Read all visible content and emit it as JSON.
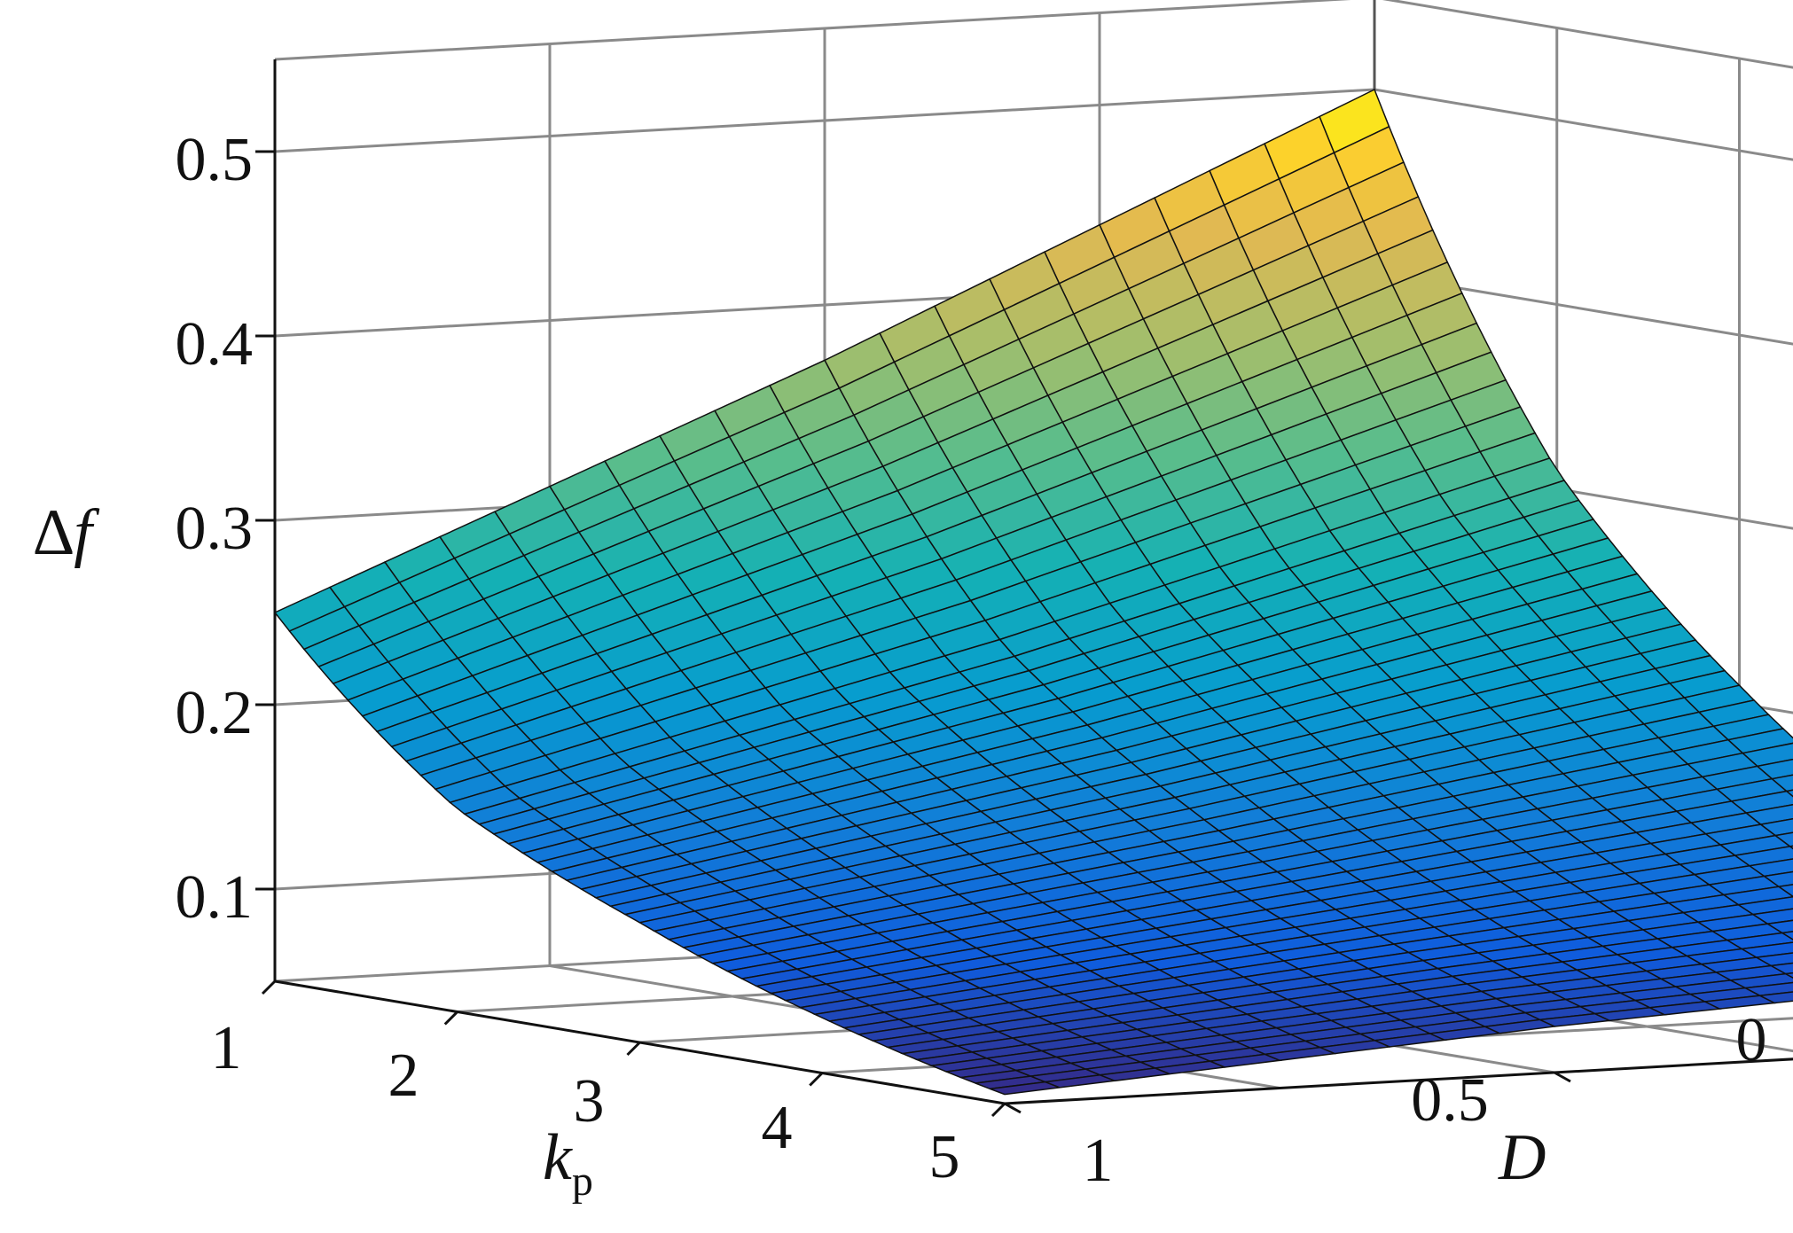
{
  "chart_data": {
    "type": "surface",
    "title": "",
    "x_axis": {
      "symbol": "k",
      "subscript": "p",
      "ticks": [
        "1",
        "2",
        "3",
        "4",
        "5"
      ],
      "range": [
        1,
        5
      ]
    },
    "y_axis": {
      "symbol": "D",
      "ticks": [
        "1",
        "0.5",
        "0"
      ],
      "range": [
        0,
        1
      ]
    },
    "z_axis": {
      "symbol": "∆f",
      "ticks": [
        "0.1",
        "0.2",
        "0.3",
        "0.4",
        "0.5"
      ],
      "range": [
        0.05,
        0.55
      ]
    },
    "grid": true,
    "colormap": "parula",
    "surface": {
      "kp": [
        1,
        2,
        3,
        4,
        5
      ],
      "D": [
        0,
        0.5,
        1
      ],
      "delta_f": [
        [
          0.5,
          0.37,
          0.25
        ],
        [
          0.31,
          0.23,
          0.16
        ],
        [
          0.21,
          0.16,
          0.115
        ],
        [
          0.14,
          0.11,
          0.08
        ],
        [
          0.09,
          0.075,
          0.055
        ]
      ],
      "mesh_lines": {
        "kp_direction": 51,
        "D_direction": 21
      }
    }
  }
}
